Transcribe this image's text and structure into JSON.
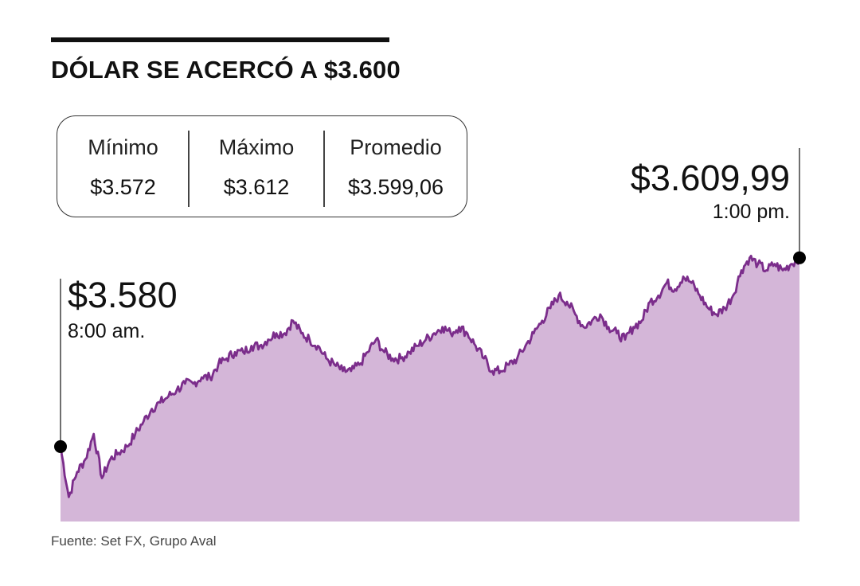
{
  "header": {
    "title": "DÓLAR SE ACERCÓ A $3.600"
  },
  "stats": [
    {
      "label": "Mínimo",
      "value": "$3.572"
    },
    {
      "label": "Máximo",
      "value": "$3.612"
    },
    {
      "label": "Promedio",
      "value": "$3.599,06"
    }
  ],
  "footer": {
    "source": "Fuente: Set FX, Grupo Aval"
  },
  "colors": {
    "line": "#7b2d8b",
    "area": "#d4b6d8",
    "text": "#111111"
  },
  "chart_data": {
    "type": "area",
    "title": "DÓLAR SE ACERCÓ A $3.600",
    "xlabel": "",
    "ylabel": "",
    "grid": false,
    "legend": "none",
    "ylim": [
      3570,
      3613
    ],
    "x_range": [
      "8:00 am.",
      "1:00 pm."
    ],
    "series": [
      {
        "values": [
          3580,
          3572,
          3576,
          3578,
          3582,
          3575,
          3578,
          3579,
          3580,
          3582,
          3584,
          3586,
          3587,
          3588,
          3589,
          3590,
          3590,
          3591,
          3591,
          3593,
          3594,
          3595,
          3595,
          3596,
          3596,
          3597,
          3598,
          3598,
          3600,
          3598,
          3597,
          3596,
          3594,
          3593,
          3592,
          3592,
          3593,
          3595,
          3597,
          3595,
          3594,
          3594,
          3595,
          3596,
          3597,
          3598,
          3599,
          3598,
          3599,
          3598,
          3596,
          3594,
          3592,
          3592,
          3593,
          3594,
          3596,
          3598,
          3600,
          3602,
          3604,
          3603,
          3601,
          3599,
          3600,
          3601,
          3599,
          3598,
          3597,
          3599,
          3600,
          3603,
          3604,
          3606,
          3605,
          3607,
          3606,
          3604,
          3602,
          3601,
          3602,
          3604,
          3608,
          3610,
          3609,
          3608,
          3609,
          3608,
          3609,
          3609.99
        ]
      }
    ],
    "annotations": [
      {
        "label": "$3.580",
        "time": "8:00 am.",
        "value": 3580
      },
      {
        "label": "$3.609,99",
        "time": "1:00 pm.",
        "value": 3609.99
      }
    ]
  }
}
